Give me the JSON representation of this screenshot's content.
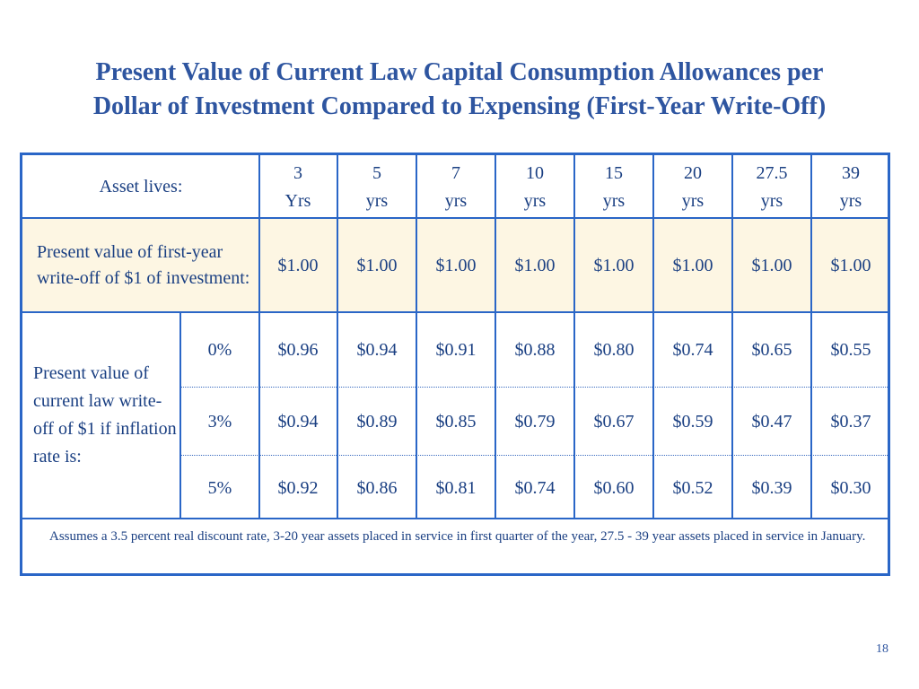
{
  "title": {
    "line1": "Present Value of Current Law Capital Consumption Allowances per",
    "line2": "Dollar of Investment Compared to Expensing (First-Year Write-Off)"
  },
  "table": {
    "asset_lives_label": "Asset lives:",
    "columns": [
      {
        "num": "3",
        "unit": "Yrs"
      },
      {
        "num": "5",
        "unit": "yrs"
      },
      {
        "num": "7",
        "unit": "yrs"
      },
      {
        "num": "10",
        "unit": "yrs"
      },
      {
        "num": "15",
        "unit": "yrs"
      },
      {
        "num": "20",
        "unit": "yrs"
      },
      {
        "num": "27.5",
        "unit": "yrs"
      },
      {
        "num": "39",
        "unit": "yrs"
      }
    ],
    "first_year_label": "Present value of first-year write-off of $1 of investment:",
    "first_year_values": [
      "$1.00",
      "$1.00",
      "$1.00",
      "$1.00",
      "$1.00",
      "$1.00",
      "$1.00",
      "$1.00"
    ],
    "current_law_label": "Present value of current law write-off of $1 if inflation rate is:",
    "rows": [
      {
        "rate": "0%",
        "values": [
          "$0.96",
          "$0.94",
          "$0.91",
          "$0.88",
          "$0.80",
          "$0.74",
          "$0.65",
          "$0.55"
        ]
      },
      {
        "rate": "3%",
        "values": [
          "$0.94",
          "$0.89",
          "$0.85",
          "$0.79",
          "$0.67",
          "$0.59",
          "$0.47",
          "$0.37"
        ]
      },
      {
        "rate": "5%",
        "values": [
          "$0.92",
          "$0.86",
          "$0.81",
          "$0.74",
          "$0.60",
          "$0.52",
          "$0.39",
          "$0.30"
        ]
      }
    ],
    "note": "Assumes a 3.5 percent real discount rate, 3-20 year assets placed in service in first quarter of the year, 27.5 - 39 year assets placed in service in January."
  },
  "page_number": "18",
  "colors": {
    "title": "#2e55a0",
    "border": "#2a66c7",
    "text": "#1a3f82",
    "highlight_row": "#fdf6e3"
  }
}
